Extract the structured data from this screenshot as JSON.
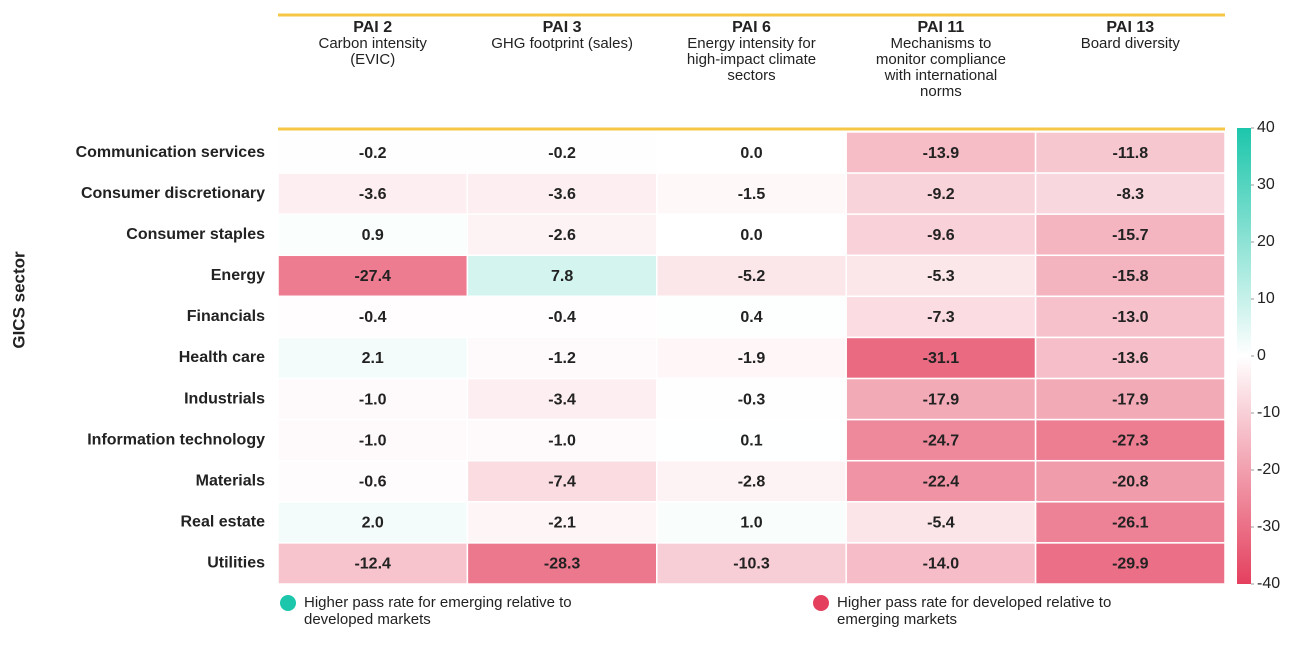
{
  "chart_data": {
    "type": "heatmap",
    "y_label": "GICS sector",
    "columns": [
      "PAI 2",
      "PAI 3",
      "PAI 6",
      "PAI 11",
      "PAI 13"
    ],
    "column_descriptions": [
      "Carbon intensity (EVIC)",
      "GHG footprint (sales)",
      "Energy intensity for high-impact climate sectors",
      "Mechanisms to monitor compliance with international norms",
      "Board diversity"
    ],
    "rows": [
      "Communication services",
      "Consumer discretionary",
      "Consumer staples",
      "Energy",
      "Financials",
      "Health care",
      "Industrials",
      "Information technology",
      "Materials",
      "Real estate",
      "Utilities"
    ],
    "values": [
      [
        -0.2,
        -0.2,
        0.0,
        -13.9,
        -11.8
      ],
      [
        -3.6,
        -3.6,
        -1.5,
        -9.2,
        -8.3
      ],
      [
        0.9,
        -2.6,
        0.0,
        -9.6,
        -15.7
      ],
      [
        -27.4,
        7.8,
        -5.2,
        -5.3,
        -15.8
      ],
      [
        -0.4,
        -0.4,
        0.4,
        -7.3,
        -13.0
      ],
      [
        2.1,
        -1.2,
        -1.9,
        -31.1,
        -13.6
      ],
      [
        -1.0,
        -3.4,
        -0.3,
        -17.9,
        -17.9
      ],
      [
        -1.0,
        -1.0,
        0.1,
        -24.7,
        -27.3
      ],
      [
        -0.6,
        -7.4,
        -2.8,
        -22.4,
        -20.8
      ],
      [
        2.0,
        -2.1,
        1.0,
        -5.4,
        -26.1
      ],
      [
        -12.4,
        -28.3,
        -10.3,
        -14.0,
        -29.9
      ]
    ],
    "value_labels": [
      [
        "-0.2",
        "-0.2",
        "0.0",
        "-13.9",
        "-11.8"
      ],
      [
        "-3.6",
        "-3.6",
        "-1.5",
        "-9.2",
        "-8.3"
      ],
      [
        "0.9",
        "-2.6",
        "0.0",
        "-9.6",
        "-15.7"
      ],
      [
        "-27.4",
        "7.8",
        "-5.2",
        "-5.3",
        "-15.8"
      ],
      [
        "-0.4",
        "-0.4",
        "0.4",
        "-7.3",
        "-13.0"
      ],
      [
        "2.1",
        "-1.2",
        "-1.9",
        "-31.1",
        "-13.6"
      ],
      [
        "-1.0",
        "-3.4",
        "-0.3",
        "-17.9",
        "-17.9"
      ],
      [
        "-1.0",
        "-1.0",
        "0.1",
        "-24.7",
        "-27.3"
      ],
      [
        "-0.6",
        "-7.4",
        "-2.8",
        "-22.4",
        "-20.8"
      ],
      [
        "2.0",
        "-2.1",
        "1.0",
        "-5.4",
        "-26.1"
      ],
      [
        "-12.4",
        "-28.3",
        "-10.3",
        "-14.0",
        "-29.9"
      ]
    ],
    "zlim": [
      -40,
      40
    ],
    "colorscale": [
      "#e4405e",
      "#ffffff",
      "#1cc6ab"
    ],
    "zticks": [
      40,
      30,
      20,
      10,
      0,
      -10,
      -20,
      -30,
      -40
    ],
    "legend": [
      {
        "label": "Higher pass rate for emerging relative to developed markets",
        "color": "#1cc6ab"
      },
      {
        "label": "Higher pass rate for developed relative to emerging markets",
        "color": "#e4405e"
      }
    ]
  }
}
